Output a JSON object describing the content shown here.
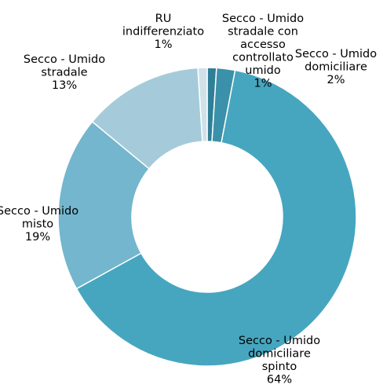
{
  "chart_data": {
    "type": "pie",
    "donut": true,
    "title": "",
    "legend": "none",
    "slices": [
      {
        "label": "Secco - Umido stradale con accesso controllato umido",
        "lines": [
          "Secco - Umido",
          "stradale con",
          "accesso",
          "controllato",
          "umido",
          "1%"
        ],
        "value": 1,
        "color": "#2f7f96"
      },
      {
        "label": "Secco - Umido domiciliare",
        "lines": [
          "Secco - Umido",
          "domiciliare",
          "2%"
        ],
        "value": 2,
        "color": "#3a91a9"
      },
      {
        "label": "Secco - Umido domiciliare spinto",
        "lines": [
          "Secco - Umido",
          "domiciliare",
          "spinto",
          "64%"
        ],
        "value": 64,
        "color": "#46a6bf"
      },
      {
        "label": "Secco - Umido misto",
        "lines": [
          "Secco - Umido",
          "misto",
          "19%"
        ],
        "value": 19,
        "color": "#73b6cd"
      },
      {
        "label": "Secco - Umido stradale",
        "lines": [
          "Secco - Umido",
          "stradale",
          "13%"
        ],
        "value": 13,
        "color": "#a5cbda"
      },
      {
        "label": "RU indifferenziato",
        "lines": [
          "RU",
          "indifferenziato",
          "1%"
        ],
        "value": 1,
        "color": "#cfe2ea"
      }
    ]
  }
}
